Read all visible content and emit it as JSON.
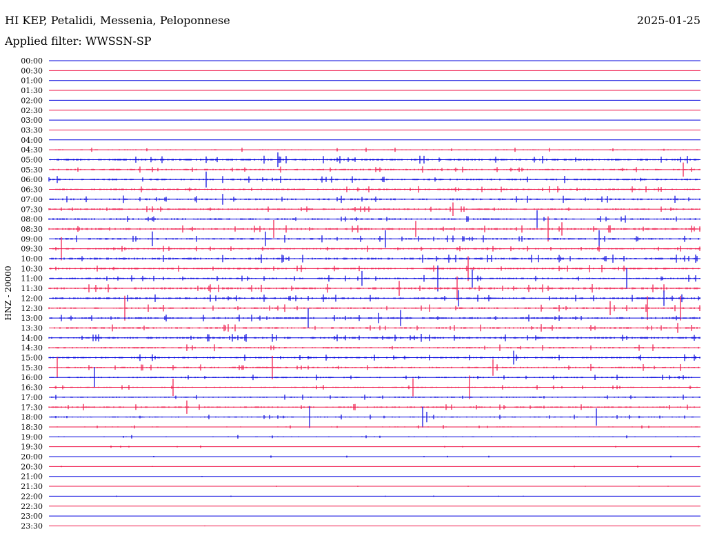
{
  "header": {
    "station": "HI KEP, Petalidi, Messenia, Peloponnese",
    "date": "2025-01-25",
    "filter_prefix": "Applied filter:",
    "filter_name": "WWSSN-SP"
  },
  "channel_label": "HNZ - 20000",
  "colors": {
    "trace_a": "#0000dd",
    "trace_b": "#ee1144"
  },
  "chart_data": {
    "type": "line",
    "title": "HI KEP, Petalidi, Messenia, Peloponnese",
    "ylabel": "HNZ - 20000",
    "xlabel": "",
    "grid": false,
    "series_colors_alternate": [
      "#0000dd",
      "#ee1144"
    ],
    "rows": [
      {
        "label": "00:00",
        "activity": 0.03
      },
      {
        "label": "00:30",
        "activity": 0.02
      },
      {
        "label": "01:00",
        "activity": 0.03
      },
      {
        "label": "01:30",
        "activity": 0.03
      },
      {
        "label": "02:00",
        "activity": 0.02
      },
      {
        "label": "02:30",
        "activity": 0.03
      },
      {
        "label": "03:00",
        "activity": 0.03
      },
      {
        "label": "03:30",
        "activity": 0.03
      },
      {
        "label": "04:00",
        "activity": 0.05
      },
      {
        "label": "04:30",
        "activity": 0.35
      },
      {
        "label": "05:00",
        "activity": 0.65
      },
      {
        "label": "05:30",
        "activity": 0.55
      },
      {
        "label": "06:00",
        "activity": 0.6
      },
      {
        "label": "06:30",
        "activity": 0.55
      },
      {
        "label": "07:00",
        "activity": 0.6
      },
      {
        "label": "07:30",
        "activity": 0.55
      },
      {
        "label": "08:00",
        "activity": 0.6
      },
      {
        "label": "08:30",
        "activity": 0.6
      },
      {
        "label": "09:00",
        "activity": 0.6
      },
      {
        "label": "09:30",
        "activity": 0.5
      },
      {
        "label": "10:00",
        "activity": 0.7
      },
      {
        "label": "10:30",
        "activity": 0.6
      },
      {
        "label": "11:00",
        "activity": 0.55
      },
      {
        "label": "11:30",
        "activity": 0.7
      },
      {
        "label": "12:00",
        "activity": 0.65
      },
      {
        "label": "12:30",
        "activity": 0.6
      },
      {
        "label": "13:00",
        "activity": 0.6
      },
      {
        "label": "13:30",
        "activity": 0.6
      },
      {
        "label": "14:00",
        "activity": 0.65
      },
      {
        "label": "14:30",
        "activity": 0.55
      },
      {
        "label": "15:00",
        "activity": 0.55
      },
      {
        "label": "15:30",
        "activity": 0.55
      },
      {
        "label": "16:00",
        "activity": 0.45
      },
      {
        "label": "16:30",
        "activity": 0.4
      },
      {
        "label": "17:00",
        "activity": 0.45
      },
      {
        "label": "17:30",
        "activity": 0.5
      },
      {
        "label": "18:00",
        "activity": 0.4
      },
      {
        "label": "18:30",
        "activity": 0.3
      },
      {
        "label": "19:00",
        "activity": 0.3
      },
      {
        "label": "19:30",
        "activity": 0.2
      },
      {
        "label": "20:00",
        "activity": 0.2
      },
      {
        "label": "20:30",
        "activity": 0.15
      },
      {
        "label": "21:00",
        "activity": 0.1
      },
      {
        "label": "21:30",
        "activity": 0.1
      },
      {
        "label": "22:00",
        "activity": 0.12
      },
      {
        "label": "22:30",
        "activity": 0.08
      },
      {
        "label": "23:00",
        "activity": 0.07
      },
      {
        "label": "23:30",
        "activity": 0.07
      }
    ]
  }
}
